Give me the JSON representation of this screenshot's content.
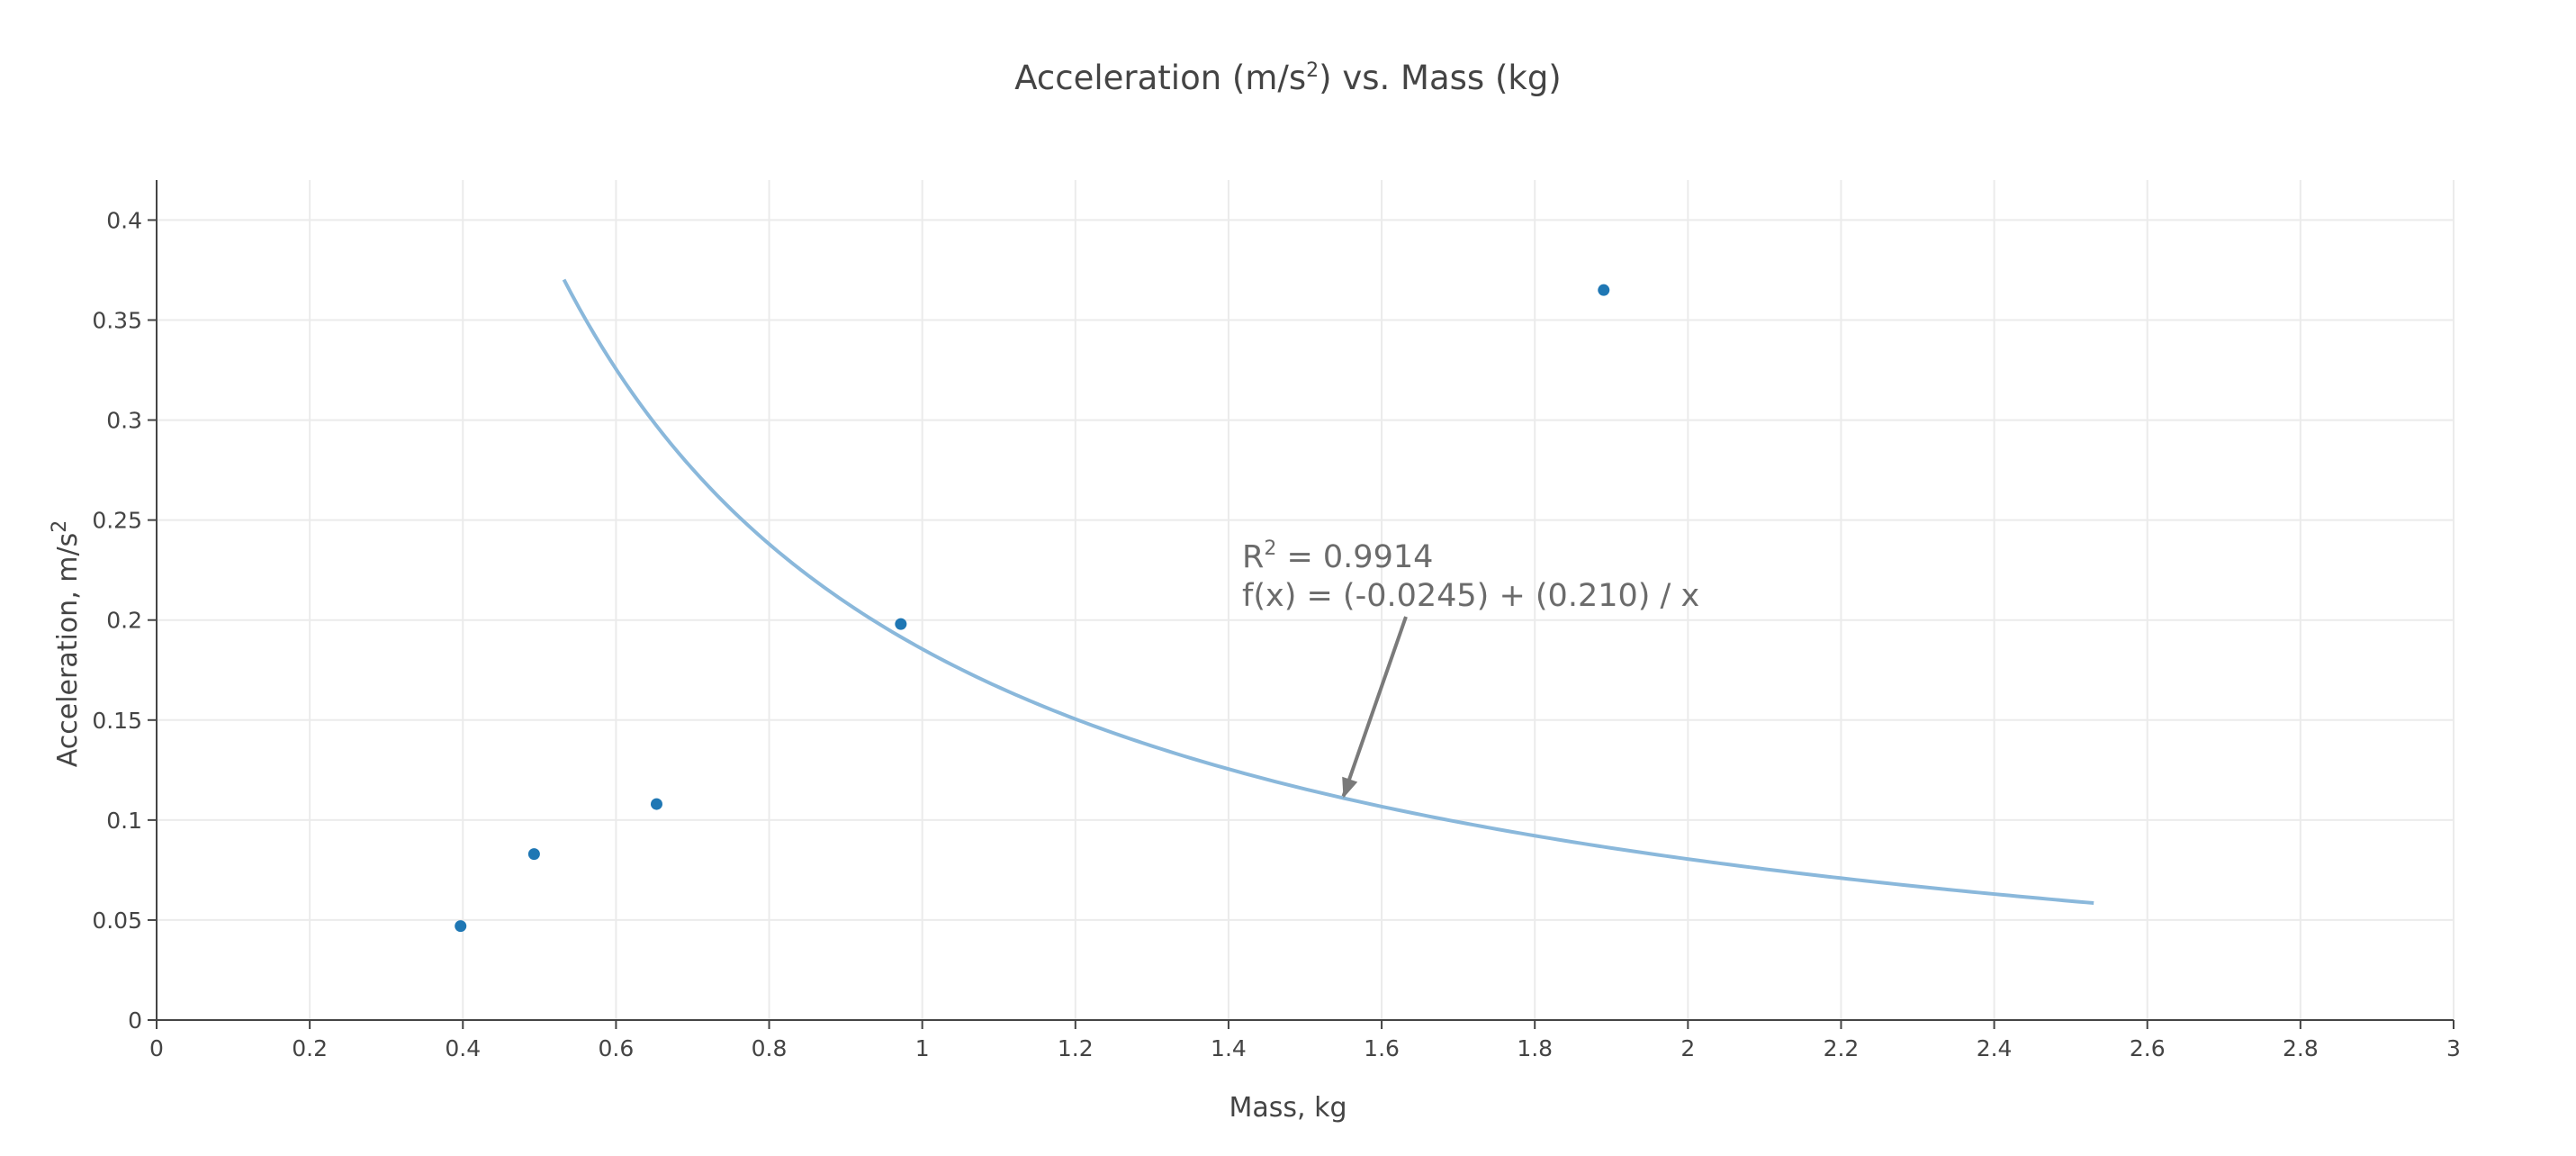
{
  "chart_data": {
    "type": "scatter",
    "title": {
      "main": "Acceleration (m/s",
      "sup": "2",
      "rest": ") vs. Mass (kg)"
    },
    "xlabel": "Mass, kg",
    "ylabel": {
      "main": "Acceleration, m/s",
      "sup": "2"
    },
    "xlim": [
      0,
      3
    ],
    "ylim": [
      0,
      0.42
    ],
    "x_ticks": [
      0,
      0.2,
      0.4,
      0.6,
      0.8,
      1,
      1.2,
      1.4,
      1.6,
      1.8,
      2,
      2.2,
      2.4,
      2.6,
      2.8,
      3
    ],
    "y_ticks": [
      0,
      0.05,
      0.1,
      0.15,
      0.2,
      0.25,
      0.3,
      0.35,
      0.4
    ],
    "x_tick_labels": [
      "0",
      "0.2",
      "0.4",
      "0.6",
      "0.8",
      "1",
      "1.2",
      "1.4",
      "1.6",
      "1.8",
      "2",
      "2.2",
      "2.4",
      "2.6",
      "2.8",
      "3"
    ],
    "y_tick_labels": [
      "0",
      "0.05",
      "0.1",
      "0.15",
      "0.2",
      "0.25",
      "0.3",
      "0.35",
      "0.4"
    ],
    "grid": true,
    "series": [
      {
        "type": "scatter",
        "color": "#1f77b4",
        "x": [
          0.397,
          0.493,
          0.653,
          0.972,
          1.89
        ],
        "y": [
          0.047,
          0.083,
          0.108,
          0.198,
          0.365
        ]
      },
      {
        "type": "line",
        "color": "#8ab8db",
        "fit": {
          "form": "a + b / x",
          "a": -0.0245,
          "b": 0.21,
          "x_range": [
            0.532,
            2.53
          ]
        }
      }
    ],
    "annotation": {
      "r2_label": "R",
      "r2_sup": "2",
      "r2_rest": " = 0.9914",
      "equation": "f(x) = (-0.0245) + (0.210) / x",
      "arrow_to": {
        "x": 1.55,
        "y": 0.111
      }
    }
  }
}
